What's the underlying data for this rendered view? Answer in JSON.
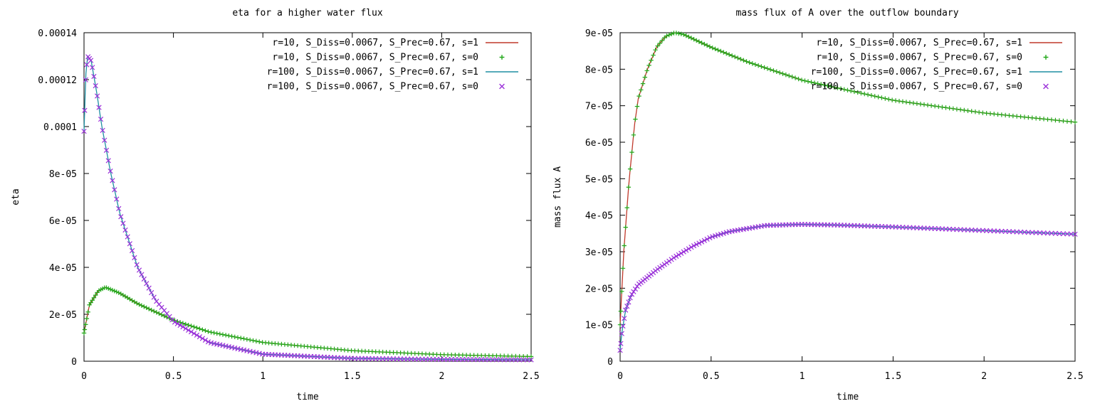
{
  "colors": {
    "red": "#c0392b",
    "green": "#22a81a",
    "teal": "#1f8fa3",
    "purple": "#9b30d9"
  },
  "chart_data": [
    {
      "type": "line",
      "title": "eta for a higher water flux",
      "xlabel": "time",
      "ylabel": "eta",
      "xlim": [
        0,
        2.5
      ],
      "ylim": [
        0,
        0.00014
      ],
      "xticks": [
        "0",
        "0.5",
        "1",
        "1.5",
        "2",
        "2.5"
      ],
      "yticks": [
        "0",
        "2e-05",
        "4e-05",
        "6e-05",
        "8e-05",
        "0.0001",
        "0.00012",
        "0.00014"
      ],
      "grid": false,
      "legend_position": "top-right",
      "series": [
        {
          "name": "r=10, S_Diss=0.0067, S_Prec=0.67, s=1",
          "style": "line",
          "color": "#c0392b",
          "x": [
            0,
            0.03,
            0.08,
            0.12,
            0.2,
            0.3,
            0.5,
            0.7,
            1.0,
            1.5,
            2.0,
            2.5
          ],
          "y": [
            1.2e-05,
            2.4e-05,
            3e-05,
            3.15e-05,
            2.9e-05,
            2.45e-05,
            1.75e-05,
            1.25e-05,
            8e-06,
            4.5e-06,
            2.8e-06,
            2e-06
          ]
        },
        {
          "name": "r=10, S_Diss=0.0067, S_Prec=0.67, s=0",
          "style": "plus",
          "color": "#22a81a",
          "x": [
            0,
            0.03,
            0.08,
            0.12,
            0.2,
            0.3,
            0.5,
            0.7,
            1.0,
            1.5,
            2.0,
            2.5
          ],
          "y": [
            1.2e-05,
            2.4e-05,
            3e-05,
            3.15e-05,
            2.9e-05,
            2.45e-05,
            1.75e-05,
            1.25e-05,
            8e-06,
            4.5e-06,
            2.8e-06,
            2e-06
          ]
        },
        {
          "name": "r=100, S_Diss=0.0067, S_Prec=0.67, s=1",
          "style": "line",
          "color": "#1f8fa3",
          "x": [
            0,
            0.01,
            0.02,
            0.04,
            0.07,
            0.1,
            0.15,
            0.2,
            0.3,
            0.4,
            0.5,
            0.7,
            1.0,
            1.5,
            2.0,
            2.5
          ],
          "y": [
            9.8e-05,
            0.000122,
            0.00013,
            0.000128,
            0.000115,
            0.0001,
            8e-05,
            6.3e-05,
            4e-05,
            2.6e-05,
            1.7e-05,
            8e-06,
            3e-06,
            1.2e-06,
            8e-07,
            6e-07
          ]
        },
        {
          "name": "r=100, S_Diss=0.0067, S_Prec=0.67, s=0",
          "style": "cross",
          "color": "#9b30d9",
          "x": [
            0,
            0.01,
            0.02,
            0.04,
            0.07,
            0.1,
            0.15,
            0.2,
            0.3,
            0.4,
            0.5,
            0.7,
            1.0,
            1.5,
            2.0,
            2.5
          ],
          "y": [
            9.8e-05,
            0.000122,
            0.00013,
            0.000128,
            0.000115,
            0.0001,
            8e-05,
            6.3e-05,
            4e-05,
            2.6e-05,
            1.7e-05,
            8e-06,
            3e-06,
            1.2e-06,
            8e-07,
            6e-07
          ]
        }
      ]
    },
    {
      "type": "line",
      "title": "mass flux of A over the outflow boundary",
      "xlabel": "time",
      "ylabel": "mass flux A",
      "xlim": [
        0,
        2.5
      ],
      "ylim": [
        0,
        9e-05
      ],
      "xticks": [
        "0",
        "0.5",
        "1",
        "1.5",
        "2",
        "2.5"
      ],
      "yticks": [
        "0",
        "1e-05",
        "2e-05",
        "3e-05",
        "4e-05",
        "5e-05",
        "6e-05",
        "7e-05",
        "8e-05",
        "9e-05"
      ],
      "grid": false,
      "legend_position": "top-right",
      "series": [
        {
          "name": "r=10, S_Diss=0.0067, S_Prec=0.67, s=1",
          "style": "line",
          "color": "#c0392b",
          "x": [
            0,
            0.02,
            0.05,
            0.08,
            0.1,
            0.15,
            0.2,
            0.25,
            0.3,
            0.35,
            0.5,
            0.7,
            1.0,
            1.5,
            2.0,
            2.5
          ],
          "y": [
            1e-05,
            3e-05,
            5e-05,
            6.5e-05,
            7.2e-05,
            8e-05,
            8.6e-05,
            8.9e-05,
            9e-05,
            8.95e-05,
            8.6e-05,
            8.2e-05,
            7.7e-05,
            7.15e-05,
            6.8e-05,
            6.55e-05
          ]
        },
        {
          "name": "r=10, S_Diss=0.0067, S_Prec=0.67, s=0",
          "style": "plus",
          "color": "#22a81a",
          "x": [
            0,
            0.02,
            0.05,
            0.08,
            0.1,
            0.15,
            0.2,
            0.25,
            0.3,
            0.35,
            0.5,
            0.7,
            1.0,
            1.5,
            2.0,
            2.5
          ],
          "y": [
            1e-05,
            3e-05,
            5e-05,
            6.5e-05,
            7.2e-05,
            8e-05,
            8.6e-05,
            8.9e-05,
            9e-05,
            8.95e-05,
            8.6e-05,
            8.2e-05,
            7.7e-05,
            7.15e-05,
            6.8e-05,
            6.55e-05
          ]
        },
        {
          "name": "r=100, S_Diss=0.0067, S_Prec=0.67, s=1",
          "style": "line",
          "color": "#1f8fa3",
          "x": [
            0,
            0.01,
            0.03,
            0.06,
            0.1,
            0.15,
            0.2,
            0.3,
            0.4,
            0.5,
            0.6,
            0.8,
            1.0,
            1.2,
            1.5,
            2.0,
            2.5
          ],
          "y": [
            3e-06,
            8e-06,
            1.4e-05,
            1.8e-05,
            2.1e-05,
            2.3e-05,
            2.5e-05,
            2.85e-05,
            3.15e-05,
            3.4e-05,
            3.55e-05,
            3.72e-05,
            3.75e-05,
            3.73e-05,
            3.68e-05,
            3.58e-05,
            3.48e-05
          ]
        },
        {
          "name": "r=100, S_Diss=0.0067, S_Prec=0.67, s=0",
          "style": "cross",
          "color": "#9b30d9",
          "x": [
            0,
            0.01,
            0.03,
            0.06,
            0.1,
            0.15,
            0.2,
            0.3,
            0.4,
            0.5,
            0.6,
            0.8,
            1.0,
            1.2,
            1.5,
            2.0,
            2.5
          ],
          "y": [
            3e-06,
            8e-06,
            1.4e-05,
            1.8e-05,
            2.1e-05,
            2.3e-05,
            2.5e-05,
            2.85e-05,
            3.15e-05,
            3.4e-05,
            3.55e-05,
            3.72e-05,
            3.75e-05,
            3.73e-05,
            3.68e-05,
            3.58e-05,
            3.48e-05
          ]
        }
      ]
    }
  ]
}
